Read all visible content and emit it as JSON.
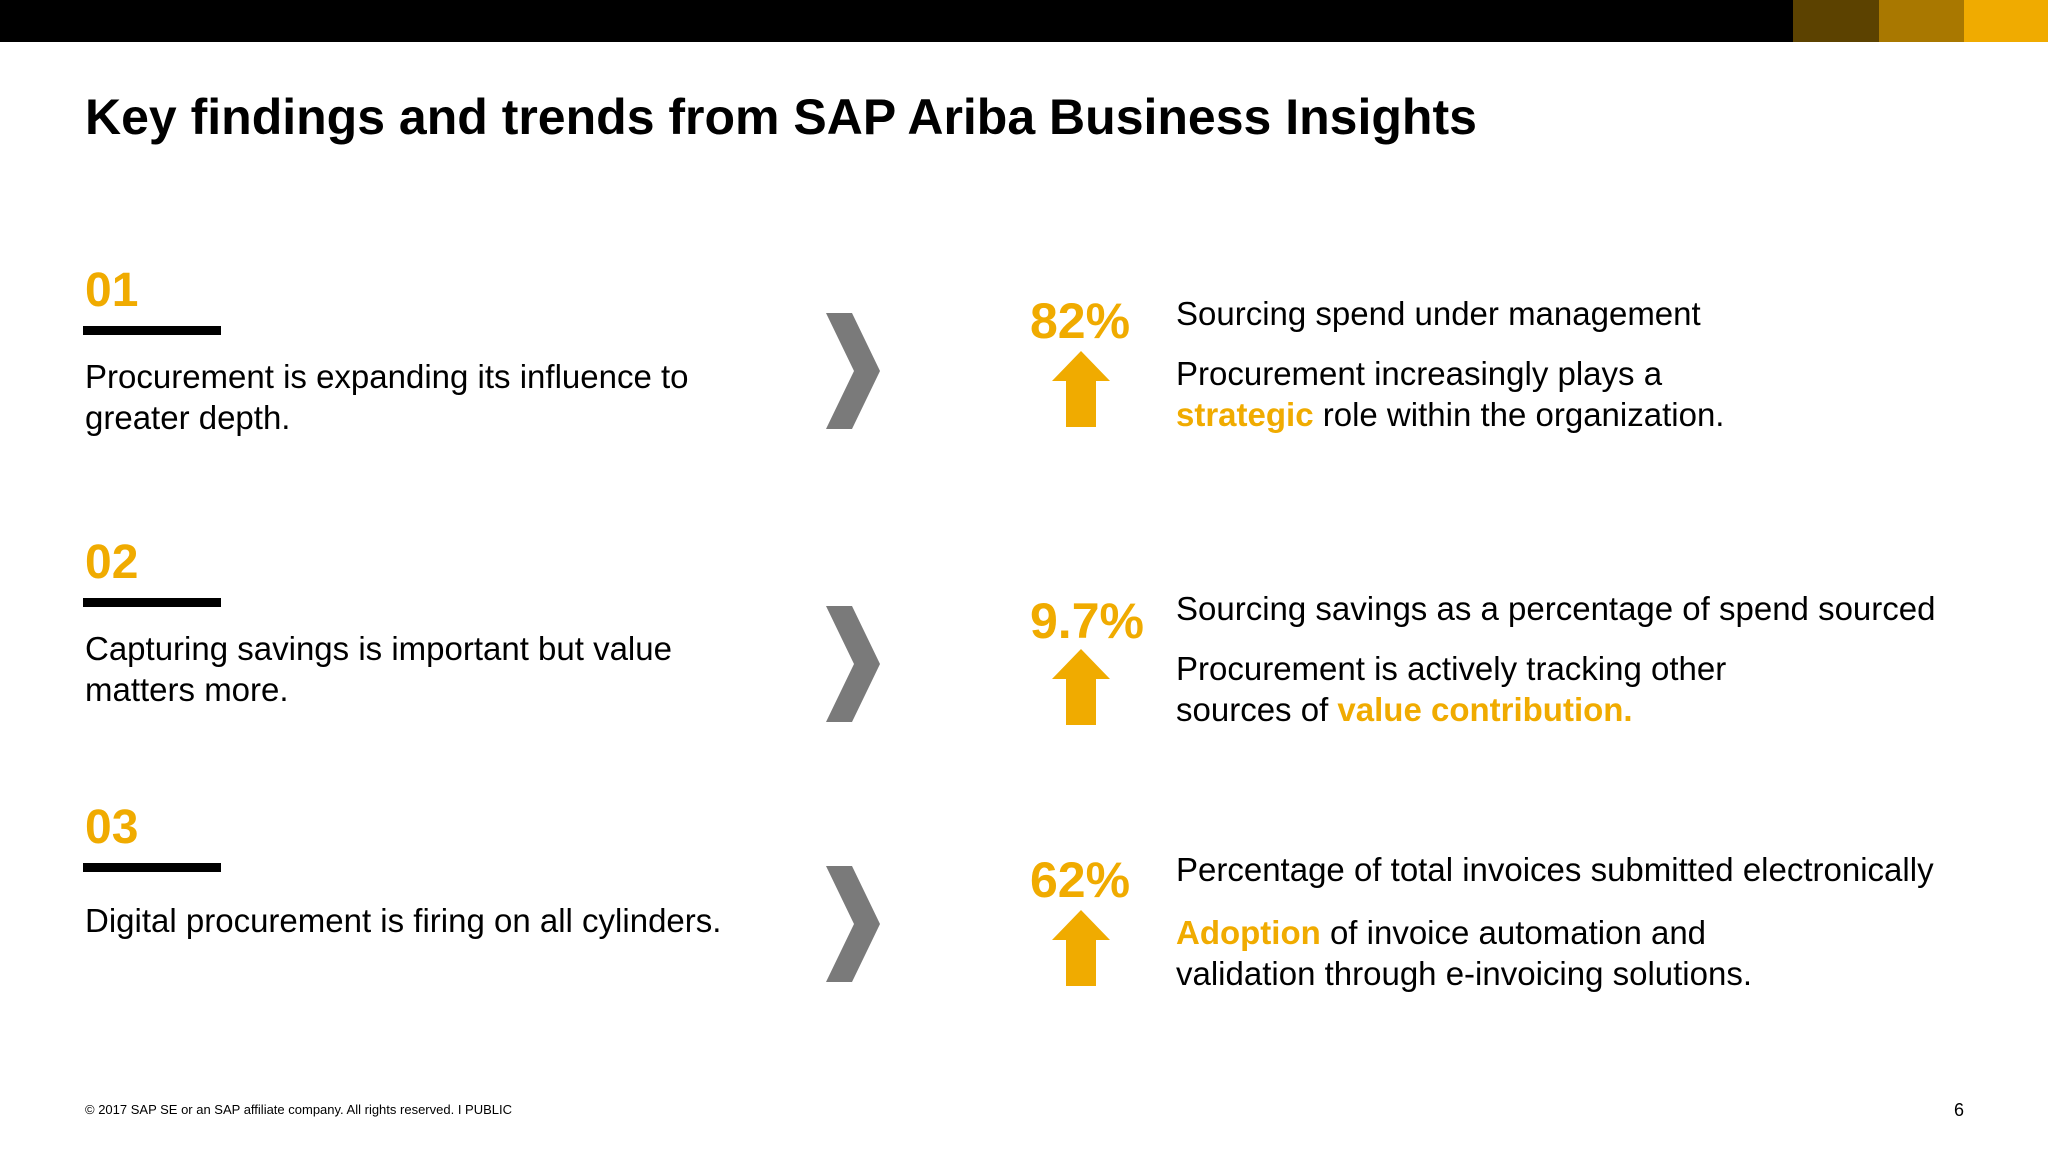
{
  "colors": {
    "accent": "#F0AB00",
    "chevron": "#7A7A7A",
    "top_bar": "#000000",
    "top_swatches": [
      "#5C4200",
      "#A97800",
      "#F0AB00"
    ]
  },
  "page_title": "Key findings and trends from SAP Ariba Business Insights",
  "findings": [
    {
      "number": "01",
      "text": "Procurement is expanding its influence to greater depth.",
      "chevron_icon": "chevron-right-icon",
      "stat": {
        "value": "82%",
        "trend_icon": "arrow-up-icon",
        "label": "Sourcing spend under management",
        "desc_line1": "Procurement increasingly plays a",
        "desc_highlight": "strategic",
        "desc_rest": " role within the organization."
      }
    },
    {
      "number": "02",
      "text": "Capturing savings is important but value matters more.",
      "chevron_icon": "chevron-right-icon",
      "stat": {
        "value": "9.7%",
        "trend_icon": "arrow-up-icon",
        "label": "Sourcing savings as a percentage of spend sourced",
        "desc_line1": "Procurement is actively tracking other",
        "desc_prefix": "sources of ",
        "desc_highlight": "value contribution."
      }
    },
    {
      "number": "03",
      "text": "Digital procurement is firing on all cylinders.",
      "chevron_icon": "chevron-right-icon",
      "stat": {
        "value": "62%",
        "trend_icon": "arrow-up-icon",
        "label": "Percentage of total invoices submitted electronically",
        "desc_highlight": "Adoption",
        "desc_rest": " of invoice automation and",
        "desc_line2": "validation through e-invoicing solutions."
      }
    }
  ],
  "footer": {
    "copyright": "© 2017 SAP SE or an SAP affiliate company. All rights reserved.  I   PUBLIC",
    "page_number": "6"
  }
}
